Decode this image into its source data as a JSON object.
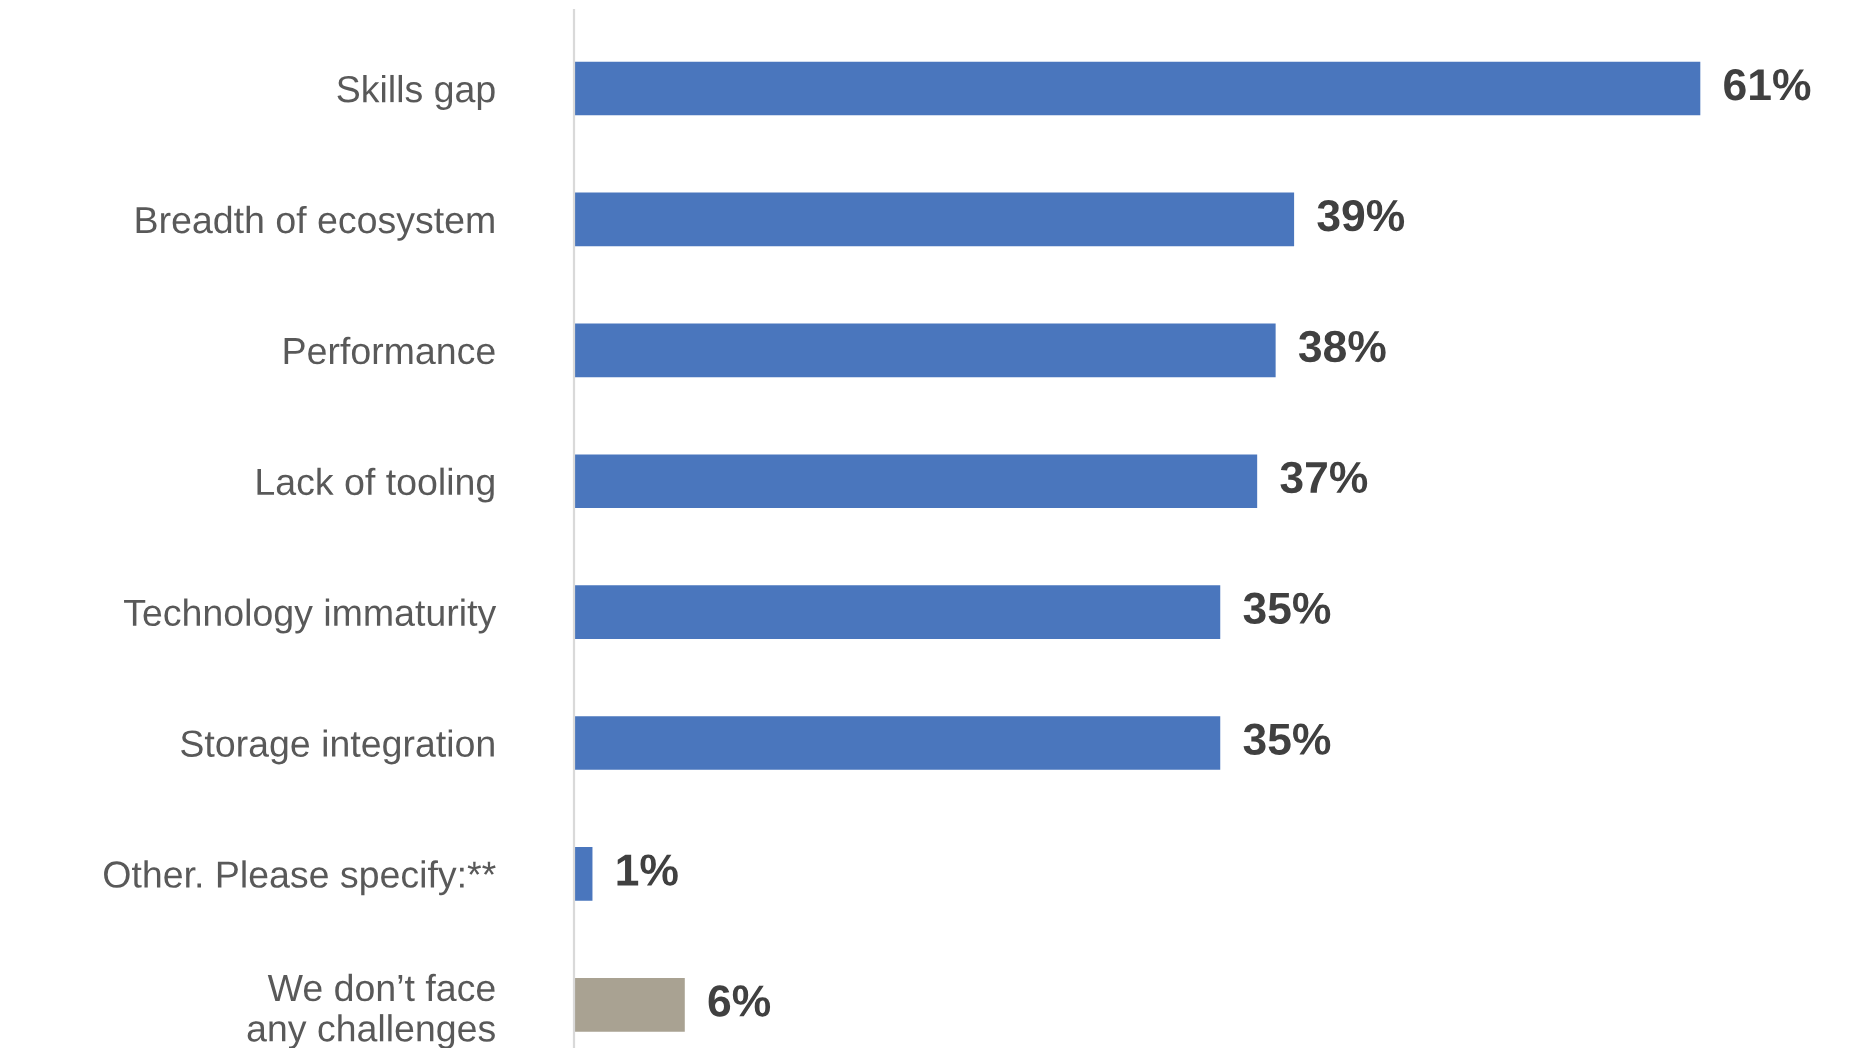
{
  "chart_data": {
    "type": "bar",
    "orientation": "horizontal",
    "categories": [
      "Skills gap",
      "Breadth of ecosystem",
      "Performance",
      "Lack of tooling",
      "Technology immaturity",
      "Storage integration",
      "Other. Please specify:**",
      "We don’t face\nany challenges"
    ],
    "values": [
      61,
      39,
      38,
      37,
      35,
      35,
      1,
      6
    ],
    "value_labels": [
      "61%",
      "39%",
      "38%",
      "37%",
      "35%",
      "35%",
      "1%",
      "6%"
    ],
    "colors": [
      "#4a76bd",
      "#4a76bd",
      "#4a76bd",
      "#4a76bd",
      "#4a76bd",
      "#4a76bd",
      "#4a76bd",
      "#a9a292"
    ],
    "grid": false,
    "legend": false
  }
}
